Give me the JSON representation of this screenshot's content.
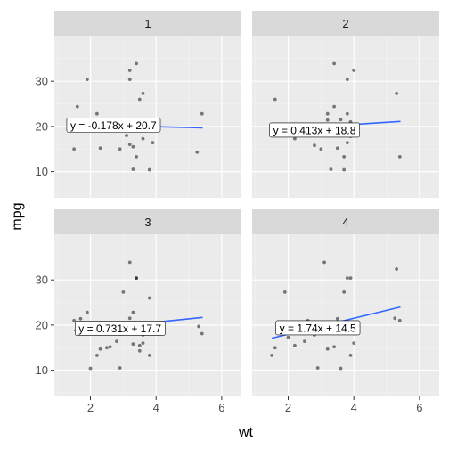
{
  "colors": {
    "panel_bg": "#ebebeb",
    "strip_bg": "#d9d9d9",
    "grid_major": "#ffffff",
    "grid_minor": "#f4f4f4",
    "point": "#000000",
    "point_opacity": 0.5,
    "line": "#3366ff"
  },
  "chart_data": {
    "type": "scatter",
    "xlabel": "wt",
    "ylabel": "mpg",
    "xlim": [
      0.9,
      6.6
    ],
    "ylim": [
      4.2,
      40.1
    ],
    "x_ticks": [
      2,
      4,
      6
    ],
    "x_tick_labels": [
      "2",
      "4",
      "6"
    ],
    "y_ticks": [
      10,
      20,
      30
    ],
    "y_tick_labels": [
      "10",
      "20",
      "30"
    ],
    "grid": true,
    "panels": [
      {
        "strip": "1",
        "equation": "y = -0.178x + 20.7",
        "label_at": [
          2.7,
          20.3
        ],
        "fit": {
          "x": [
            1.5,
            5.42
          ],
          "y": [
            20.4,
            19.7
          ]
        },
        "points": [
          [
            1.5,
            15.0
          ],
          [
            1.6,
            24.4
          ],
          [
            1.9,
            30.4
          ],
          [
            2.2,
            22.8
          ],
          [
            2.3,
            15.2
          ],
          [
            2.6,
            21.0
          ],
          [
            2.9,
            15.0
          ],
          [
            3.1,
            18.0
          ],
          [
            3.2,
            32.4
          ],
          [
            3.2,
            30.4
          ],
          [
            3.2,
            19.2
          ],
          [
            3.2,
            16.0
          ],
          [
            3.3,
            15.5
          ],
          [
            3.4,
            33.9
          ],
          [
            3.4,
            13.3
          ],
          [
            3.5,
            26.0
          ],
          [
            3.5,
            19.5
          ],
          [
            3.6,
            17.3
          ],
          [
            3.8,
            10.4
          ],
          [
            3.9,
            16.4
          ],
          [
            3.2,
            21.5
          ],
          [
            3.3,
            10.5
          ],
          [
            3.6,
            27.3
          ],
          [
            5.25,
            14.3
          ],
          [
            5.4,
            22.8
          ]
        ]
      },
      {
        "strip": "2",
        "equation": "y = 0.413x + 18.8",
        "label_at": [
          2.8,
          19.2
        ],
        "fit": {
          "x": [
            1.5,
            5.42
          ],
          "y": [
            19.3,
            21.1
          ]
        },
        "points": [
          [
            1.5,
            19.2
          ],
          [
            1.6,
            26.0
          ],
          [
            2.2,
            17.3
          ],
          [
            2.6,
            18.7
          ],
          [
            2.8,
            15.8
          ],
          [
            3.0,
            15.0
          ],
          [
            3.2,
            21.4
          ],
          [
            3.2,
            22.8
          ],
          [
            3.3,
            18.1
          ],
          [
            3.3,
            10.5
          ],
          [
            3.4,
            33.9
          ],
          [
            3.4,
            24.4
          ],
          [
            3.5,
            15.2
          ],
          [
            3.5,
            19.2
          ],
          [
            3.6,
            21.5
          ],
          [
            3.7,
            13.3
          ],
          [
            3.7,
            10.4
          ],
          [
            3.8,
            22.8
          ],
          [
            3.8,
            16.4
          ],
          [
            3.8,
            30.4
          ],
          [
            3.9,
            21.0
          ],
          [
            3.9,
            17.8
          ],
          [
            4.0,
            32.4
          ],
          [
            5.3,
            27.3
          ],
          [
            5.4,
            13.3
          ]
        ]
      },
      {
        "strip": "3",
        "equation": "y = 0.731x + 17.7",
        "label_at": [
          2.9,
          19.3
        ],
        "fit": {
          "x": [
            1.5,
            5.42
          ],
          "y": [
            18.8,
            21.7
          ]
        },
        "points": [
          [
            1.5,
            21.0
          ],
          [
            1.7,
            21.4
          ],
          [
            1.9,
            22.8
          ],
          [
            2.0,
            10.4
          ],
          [
            2.2,
            13.3
          ],
          [
            2.3,
            14.7
          ],
          [
            2.5,
            15.0
          ],
          [
            2.6,
            15.2
          ],
          [
            2.8,
            16.4
          ],
          [
            2.9,
            10.5
          ],
          [
            3.0,
            27.3
          ],
          [
            3.2,
            33.9
          ],
          [
            3.2,
            21.5
          ],
          [
            3.3,
            15.8
          ],
          [
            3.3,
            22.8
          ],
          [
            3.4,
            30.4
          ],
          [
            3.4,
            30.4
          ],
          [
            3.5,
            15.5
          ],
          [
            3.5,
            14.3
          ],
          [
            3.6,
            17.8
          ],
          [
            3.6,
            16.0
          ],
          [
            3.8,
            26.0
          ],
          [
            3.8,
            13.3
          ],
          [
            5.3,
            19.7
          ],
          [
            5.4,
            18.1
          ]
        ]
      },
      {
        "strip": "4",
        "equation": "y = 1.74x + 14.5",
        "label_at": [
          2.9,
          19.4
        ],
        "fit": {
          "x": [
            1.5,
            5.42
          ],
          "y": [
            17.1,
            24.0
          ]
        },
        "points": [
          [
            1.5,
            13.3
          ],
          [
            1.6,
            15.0
          ],
          [
            1.9,
            27.3
          ],
          [
            2.0,
            17.3
          ],
          [
            2.2,
            15.5
          ],
          [
            2.3,
            18.7
          ],
          [
            2.5,
            16.4
          ],
          [
            2.6,
            21.0
          ],
          [
            2.8,
            17.8
          ],
          [
            2.9,
            10.5
          ],
          [
            3.1,
            33.9
          ],
          [
            3.2,
            14.7
          ],
          [
            3.4,
            15.2
          ],
          [
            3.5,
            21.4
          ],
          [
            3.6,
            10.4
          ],
          [
            3.6,
            19.2
          ],
          [
            3.7,
            27.3
          ],
          [
            3.8,
            30.4
          ],
          [
            3.9,
            30.4
          ],
          [
            3.9,
            13.3
          ],
          [
            4.0,
            16.0
          ],
          [
            4.0,
            18.1
          ],
          [
            5.3,
            32.4
          ],
          [
            5.25,
            21.5
          ],
          [
            5.4,
            21.0
          ]
        ]
      }
    ]
  }
}
